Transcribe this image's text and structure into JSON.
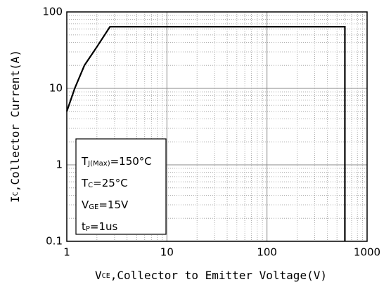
{
  "chart_data": {
    "type": "line",
    "log_x": true,
    "log_y": true,
    "grid": true,
    "minor_grid": true,
    "x": [
      1,
      1.2,
      1.5,
      2,
      2.7,
      600,
      600
    ],
    "series": [
      {
        "color": "#000000",
        "values": [
          5,
          10,
          20,
          35,
          64,
          64,
          0.1
        ]
      }
    ],
    "xlim": [
      1,
      1000
    ],
    "xticks": [
      1,
      10,
      100,
      1000
    ],
    "ylim": [
      0.1,
      100
    ],
    "yticks": [
      0.1,
      1,
      10,
      100
    ],
    "x_label": {
      "main": "V",
      "sub": "CE",
      "rest": ",Collector to Emitter Voltage(V)"
    },
    "y_label": {
      "main": "I",
      "sub": "C",
      "rest": ",Collector Current(A)"
    },
    "annotations": [
      {
        "main": "T",
        "sub": "J(Max)",
        "rest": "=150°C"
      },
      {
        "main": "T",
        "sub": "C",
        "rest": "=25°C"
      },
      {
        "main": "V",
        "sub": "GE",
        "rest": "=15V"
      },
      {
        "main": "t",
        "sub": "P",
        "rest": "=1us"
      }
    ]
  }
}
